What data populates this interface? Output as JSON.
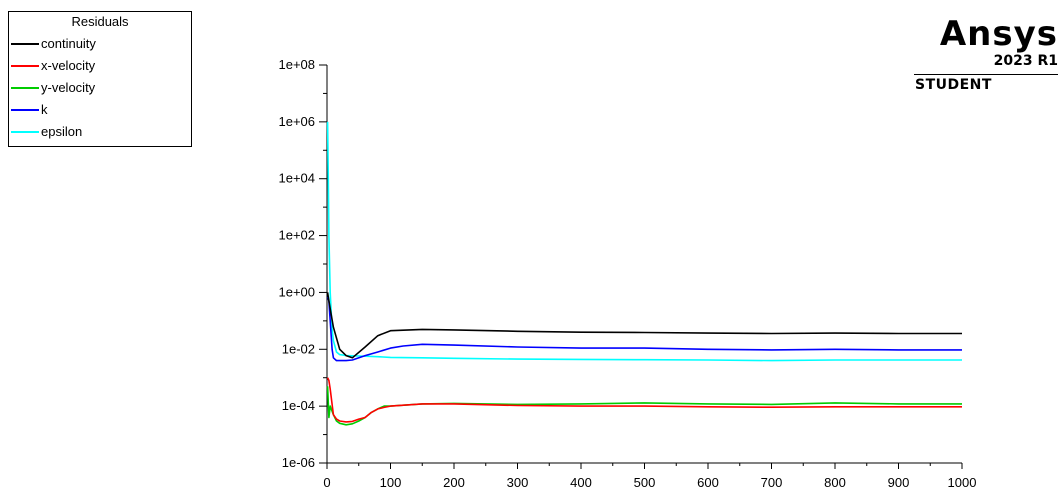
{
  "chart_data": {
    "type": "line",
    "legend": {
      "title": "Residuals",
      "placement": "top-left",
      "entries": [
        {
          "name": "continuity",
          "color": "#000000"
        },
        {
          "name": "x-velocity",
          "color": "#ff0000"
        },
        {
          "name": "y-velocity",
          "color": "#00cc00"
        },
        {
          "name": "k",
          "color": "#0000ff"
        },
        {
          "name": "epsilon",
          "color": "#00ffff"
        }
      ]
    },
    "x_axis": {
      "range": [
        0,
        1000
      ],
      "ticks": [
        0,
        100,
        200,
        300,
        400,
        500,
        600,
        700,
        800,
        900,
        1000
      ],
      "tick_labels": [
        "0",
        "100",
        "200",
        "300",
        "400",
        "500",
        "600",
        "700",
        "800",
        "900",
        "1000"
      ]
    },
    "y_axis": {
      "scale": "log",
      "range": [
        1e-06,
        100000000.0
      ],
      "ticks": [
        1e-06,
        0.0001,
        0.01,
        1,
        100.0,
        10000.0,
        1000000.0,
        100000000.0
      ],
      "tick_labels": [
        "1e-06",
        "1e-04",
        "1e-02",
        "1e+00",
        "1e+02",
        "1e+04",
        "1e+06",
        "1e+08"
      ]
    },
    "grid": false,
    "series": [
      {
        "name": "continuity",
        "color": "#000000",
        "x": [
          1,
          3,
          6,
          10,
          20,
          30,
          40,
          60,
          80,
          100,
          150,
          200,
          300,
          400,
          500,
          600,
          700,
          800,
          900,
          1000
        ],
        "y": [
          1.0,
          0.5,
          0.2,
          0.06,
          0.01,
          0.006,
          0.005,
          0.012,
          0.03,
          0.045,
          0.05,
          0.048,
          0.043,
          0.04,
          0.039,
          0.037,
          0.036,
          0.037,
          0.036,
          0.036
        ]
      },
      {
        "name": "x-velocity",
        "color": "#ff0000",
        "x": [
          1,
          3,
          5,
          10,
          15,
          20,
          30,
          40,
          50,
          60,
          70,
          80,
          90,
          100,
          150,
          200,
          300,
          400,
          500,
          600,
          700,
          800,
          900,
          1000
        ],
        "y": [
          0.001,
          0.0008,
          0.0004,
          5e-05,
          3.5e-05,
          3e-05,
          2.8e-05,
          2.9e-05,
          3.5e-05,
          4e-05,
          6e-05,
          8e-05,
          9e-05,
          0.0001,
          0.00012,
          0.00012,
          0.000105,
          0.0001,
          0.0001,
          9.5e-05,
          9.2e-05,
          9.5e-05,
          9.5e-05,
          9.5e-05
        ]
      },
      {
        "name": "y-velocity",
        "color": "#00cc00",
        "x": [
          1,
          3,
          5,
          10,
          15,
          20,
          30,
          40,
          50,
          60,
          70,
          80,
          90,
          100,
          150,
          200,
          300,
          400,
          500,
          600,
          700,
          800,
          900,
          1000
        ],
        "y": [
          0.0005,
          4e-05,
          0.0001,
          5e-05,
          3e-05,
          2.5e-05,
          2.2e-05,
          2.4e-05,
          3e-05,
          4e-05,
          6e-05,
          8e-05,
          0.0001,
          0.0001,
          0.00012,
          0.000125,
          0.000115,
          0.00012,
          0.00013,
          0.00012,
          0.000115,
          0.00013,
          0.00012,
          0.00012
        ]
      },
      {
        "name": "k",
        "color": "#0000ff",
        "x": [
          1,
          3,
          5,
          8,
          10,
          15,
          20,
          30,
          40,
          60,
          80,
          100,
          120,
          150,
          200,
          300,
          400,
          500,
          600,
          700,
          800,
          900,
          1000
        ],
        "y": [
          0.7,
          0.5,
          0.1,
          0.01,
          0.005,
          0.004,
          0.004,
          0.004,
          0.0042,
          0.006,
          0.008,
          0.011,
          0.013,
          0.015,
          0.014,
          0.012,
          0.011,
          0.011,
          0.01,
          0.0095,
          0.01,
          0.0095,
          0.0095
        ]
      },
      {
        "name": "epsilon",
        "color": "#00ffff",
        "x": [
          1,
          2,
          3,
          5,
          8,
          10,
          15,
          20,
          30,
          50,
          80,
          100,
          150,
          200,
          300,
          400,
          500,
          600,
          700,
          800,
          900,
          1000
        ],
        "y": [
          1000000,
          10000,
          100,
          1,
          0.05,
          0.02,
          0.008,
          0.0065,
          0.006,
          0.0058,
          0.0055,
          0.0052,
          0.005,
          0.0048,
          0.0045,
          0.0044,
          0.0043,
          0.0042,
          0.004,
          0.0042,
          0.0042,
          0.0042
        ]
      }
    ]
  },
  "logo": {
    "brand": "Ansys",
    "version": "2023 R1",
    "edition": "STUDENT"
  }
}
